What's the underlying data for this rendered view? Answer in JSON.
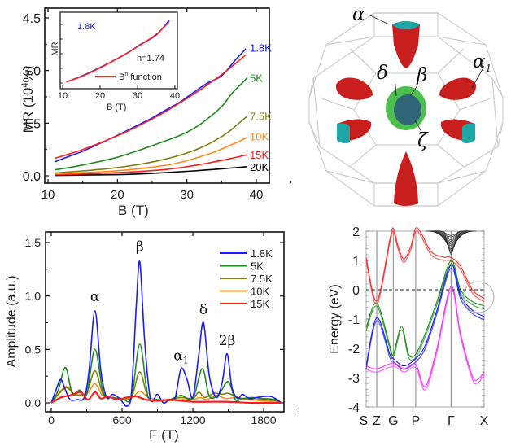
{
  "chart_data": [
    {
      "id": "mr",
      "type": "line",
      "title": "",
      "xlabel": "B (T)",
      "ylabel": "MR (10⁴%)",
      "ylabel_main": "MR (10",
      "ylabel_sup": "4",
      "ylabel_end": "%)",
      "xlim": [
        10,
        42
      ],
      "ylim": [
        -0.15,
        4.6
      ],
      "xticks": [
        10,
        20,
        30,
        40
      ],
      "yticks": [
        "0.0",
        "1.5",
        "3.0",
        "4.5"
      ],
      "ytick_values": [
        0,
        1.5,
        3.0,
        4.5
      ],
      "series": [
        {
          "name": "1.8K",
          "color": "#1a1aff",
          "x": [
            11,
            13,
            15,
            17,
            19,
            21,
            23,
            25,
            27,
            29,
            31,
            33,
            35,
            37,
            38.5
          ],
          "y": [
            0.4,
            0.55,
            0.7,
            0.88,
            1.06,
            1.25,
            1.45,
            1.65,
            1.88,
            2.1,
            2.38,
            2.65,
            2.85,
            3.3,
            3.62
          ]
        },
        {
          "name": "B^n fit",
          "color": "#ff2020",
          "x": [
            11,
            13,
            15,
            17,
            19,
            21,
            23,
            25,
            27,
            29,
            31,
            33,
            35,
            37,
            38.5
          ],
          "y": [
            0.5,
            0.62,
            0.75,
            0.9,
            1.06,
            1.23,
            1.42,
            1.62,
            1.84,
            2.08,
            2.33,
            2.6,
            2.88,
            3.2,
            3.45
          ]
        },
        {
          "name": "5K",
          "color": "#1f8a1f",
          "x": [
            11,
            14,
            17,
            20,
            23,
            26,
            29,
            31,
            33,
            35,
            36.5,
            38,
            38.7
          ],
          "y": [
            0.17,
            0.27,
            0.39,
            0.53,
            0.72,
            0.93,
            1.15,
            1.35,
            1.63,
            1.97,
            2.35,
            2.65,
            2.8
          ]
        },
        {
          "name": "7.5K",
          "color": "#7f7f0f",
          "x": [
            11,
            15,
            19,
            23,
            27,
            30,
            32,
            34,
            36,
            37.5,
            38.7
          ],
          "y": [
            0.08,
            0.14,
            0.21,
            0.32,
            0.48,
            0.65,
            0.8,
            1.0,
            1.25,
            1.5,
            1.7
          ]
        },
        {
          "name": "10K",
          "color": "#ff8c1a",
          "x": [
            11,
            15,
            19,
            23,
            27,
            30,
            32,
            34,
            36,
            37.5,
            38.7
          ],
          "y": [
            0.05,
            0.09,
            0.13,
            0.2,
            0.3,
            0.43,
            0.55,
            0.68,
            0.85,
            0.98,
            1.1
          ]
        },
        {
          "name": "15K",
          "color": "#ff1a1a",
          "x": [
            11,
            15,
            19,
            23,
            27,
            30,
            33,
            36,
            38.7
          ],
          "y": [
            0.03,
            0.05,
            0.08,
            0.12,
            0.18,
            0.26,
            0.36,
            0.48,
            0.6
          ]
        },
        {
          "name": "20K",
          "color": "#000000",
          "x": [
            11,
            15,
            19,
            23,
            27,
            31,
            35,
            38.7
          ],
          "y": [
            0.01,
            0.02,
            0.03,
            0.05,
            0.09,
            0.14,
            0.2,
            0.26
          ]
        }
      ],
      "series_labels": [
        "1.8K",
        "5K",
        "7.5K",
        "10K",
        "15K",
        "20K"
      ],
      "inset": {
        "ylabel": "MR",
        "xlabel": "B (T)",
        "xticks": [
          10,
          20,
          30,
          40
        ],
        "xlim": [
          10,
          41
        ],
        "temp_label": "1.8K",
        "fit_annotation": "n=1.74",
        "legend_label": "B",
        "legend_sup": "n",
        "legend_rest": " function",
        "series": [
          {
            "name": "data 1.8K",
            "color": "#1a1aff",
            "x": [
              11,
              15,
              19,
              23,
              27,
              31,
              35,
              38.5
            ],
            "y": [
              0.4,
              0.7,
              1.06,
              1.45,
              1.88,
              2.38,
              2.85,
              3.62
            ]
          },
          {
            "name": "B^n fit",
            "color": "#ff2020",
            "x": [
              11,
              15,
              19,
              23,
              27,
              31,
              35,
              38.5
            ],
            "y": [
              0.4,
              0.68,
              1.04,
              1.44,
              1.88,
              2.36,
              2.88,
              3.55
            ]
          }
        ]
      }
    },
    {
      "id": "fft",
      "type": "line",
      "xlabel": "F (T)",
      "ylabel": "Amplitude (a.u.)",
      "xlim": [
        -80,
        2050
      ],
      "ylim": [
        -0.08,
        1.6
      ],
      "xticks": [
        0,
        600,
        1200,
        1800
      ],
      "yticks": [
        "0.0",
        "0.5",
        "1.0",
        "1.5"
      ],
      "ytick_values": [
        0,
        0.5,
        1.0,
        1.5
      ],
      "legend_position": "top-right",
      "annotations": [
        {
          "text": "α",
          "x": 370,
          "y": 0.95
        },
        {
          "text": "β",
          "x": 750,
          "y": 1.42
        },
        {
          "text": "α",
          "sub": "1",
          "x": 1100,
          "y": 0.4
        },
        {
          "text": "δ",
          "x": 1290,
          "y": 0.83
        },
        {
          "text": "2β",
          "x": 1490,
          "y": 0.54
        }
      ],
      "series": [
        {
          "name": "1.8K",
          "color": "#1a1aff",
          "x": [
            0,
            40,
            80,
            120,
            160,
            220,
            280,
            320,
            370,
            420,
            470,
            520,
            580,
            640,
            680,
            720,
            750,
            790,
            840,
            900,
            950,
            1000,
            1050,
            1100,
            1150,
            1200,
            1250,
            1290,
            1340,
            1400,
            1450,
            1490,
            1530,
            1580,
            1620,
            1680,
            1740,
            1800,
            1860,
            1900,
            1950
          ],
          "y": [
            0,
            0.12,
            0.22,
            0.12,
            0.03,
            0.03,
            0.05,
            0.3,
            0.86,
            0.3,
            0.05,
            0.08,
            0.04,
            -0.03,
            0.1,
            0.9,
            1.32,
            0.6,
            0.04,
            0.08,
            0.0,
            0.03,
            0.05,
            0.32,
            0.22,
            0.05,
            0.45,
            0.75,
            0.25,
            0.05,
            0.2,
            0.46,
            0.15,
            0.04,
            0.08,
            0.04,
            0.05,
            0.06,
            0.06,
            0.04,
            0.0
          ]
        },
        {
          "name": "5K",
          "color": "#1f8a1f",
          "x": [
            0,
            60,
            120,
            180,
            240,
            300,
            370,
            440,
            520,
            600,
            680,
            750,
            820,
            900,
            1000,
            1100,
            1200,
            1280,
            1340,
            1420,
            1500,
            1560,
            1620,
            1700,
            1800,
            1900,
            1950
          ],
          "y": [
            0,
            0.12,
            0.33,
            0.08,
            0.12,
            0.08,
            0.5,
            0.1,
            0.05,
            0.04,
            0.05,
            0.55,
            0.06,
            0.03,
            0.03,
            0.07,
            0.04,
            0.32,
            0.06,
            0.08,
            0.2,
            0.03,
            0.04,
            0.05,
            0.04,
            0.03,
            0.0
          ]
        },
        {
          "name": "7.5K",
          "color": "#7f7f0f",
          "x": [
            0,
            120,
            200,
            300,
            370,
            440,
            520,
            600,
            680,
            750,
            820,
            900,
            1000,
            1100,
            1200,
            1250,
            1300,
            1380,
            1450,
            1500,
            1560,
            1620,
            1700,
            1800,
            1900,
            1950
          ],
          "y": [
            0,
            0.14,
            0.08,
            0.1,
            0.3,
            0.08,
            0.05,
            0.04,
            0.05,
            0.29,
            0.05,
            0.03,
            0.03,
            0.05,
            0.04,
            0.1,
            0.05,
            0.09,
            0.08,
            0.09,
            0.06,
            0.04,
            0.03,
            0.03,
            0.02,
            0.0
          ]
        },
        {
          "name": "10K",
          "color": "#ff8c1a",
          "x": [
            0,
            120,
            200,
            300,
            370,
            440,
            520,
            600,
            680,
            750,
            820,
            900,
            1000,
            1100,
            1200,
            1260,
            1320,
            1400,
            1480,
            1560,
            1650,
            1800,
            1950
          ],
          "y": [
            0,
            0.15,
            0.08,
            0.08,
            0.18,
            0.06,
            0.05,
            0.04,
            0.04,
            0.11,
            0.05,
            0.03,
            0.02,
            0.03,
            0.03,
            0.05,
            0.03,
            0.07,
            0.04,
            0.05,
            0.03,
            0.02,
            0.0
          ]
        },
        {
          "name": "15K",
          "color": "#ff1a1a",
          "x": [
            0,
            80,
            160,
            250,
            310,
            370,
            420,
            480,
            560,
            640,
            720,
            800,
            900,
            1000,
            1100,
            1200,
            1300,
            1500,
            1700,
            1950
          ],
          "y": [
            0,
            0.05,
            0.07,
            0.1,
            0.03,
            0.1,
            0.04,
            0.06,
            0.03,
            0.05,
            0.06,
            0.03,
            0.02,
            0.03,
            0.02,
            0.01,
            0.01,
            0.01,
            0.0,
            0.0
          ]
        }
      ]
    },
    {
      "id": "bands",
      "type": "line",
      "xlabel": "",
      "ylabel": "Energy (eV)",
      "ylim": [
        -4,
        2
      ],
      "yticks": [
        "-4",
        "-3",
        "-2",
        "-1",
        "0",
        "1",
        "2"
      ],
      "ytick_values": [
        -4,
        -3,
        -2,
        -1,
        0,
        1,
        2
      ],
      "kpoints": [
        "S",
        "Z",
        "G",
        "P",
        "Γ",
        "X"
      ],
      "kpoint_positions": [
        0,
        0.09,
        0.23,
        0.42,
        0.72,
        1.0
      ],
      "fermi_level": 0,
      "series": [
        {
          "name": "red band",
          "color": "#ff2a2a",
          "x": [
            0,
            0.09,
            0.2,
            0.23,
            0.27,
            0.32,
            0.38,
            0.42,
            0.47,
            0.55,
            0.65,
            0.72,
            0.8,
            0.9,
            1.0
          ],
          "y": [
            1.1,
            -0.38,
            1.7,
            2.1,
            1.5,
            1.05,
            1.5,
            2.1,
            1.9,
            1.3,
            1.12,
            1.1,
            0.8,
            0.0,
            -0.3
          ]
        },
        {
          "name": "green band",
          "color": "#1f8f1f",
          "x": [
            0,
            0.09,
            0.2,
            0.23,
            0.3,
            0.36,
            0.42,
            0.5,
            0.6,
            0.72,
            0.8,
            0.9,
            1.0
          ],
          "y": [
            -1.3,
            -0.45,
            -1.9,
            -2.2,
            -1.25,
            -2.2,
            -2.2,
            -1.5,
            -0.4,
            1.0,
            0.0,
            -0.4,
            -0.55
          ]
        },
        {
          "name": "blue band",
          "color": "#1a1aff",
          "x": [
            0,
            0.09,
            0.2,
            0.23,
            0.32,
            0.42,
            0.5,
            0.6,
            0.72,
            0.8,
            0.9,
            1.0
          ],
          "y": [
            -2.6,
            -0.95,
            -2.2,
            -2.35,
            -2.6,
            -2.35,
            -1.9,
            -0.7,
            0.85,
            -0.2,
            -0.7,
            -0.92
          ]
        },
        {
          "name": "magenta band",
          "color": "#ff2aff",
          "x": [
            0,
            0.09,
            0.23,
            0.32,
            0.42,
            0.5,
            0.6,
            0.72,
            0.8,
            0.9,
            0.95,
            1.0
          ],
          "y": [
            -2.6,
            -2.7,
            -2.5,
            -2.7,
            -2.55,
            -3.3,
            -2.0,
            0.12,
            -1.5,
            -2.95,
            -3.05,
            -2.8
          ]
        }
      ]
    }
  ],
  "fermi_surface": {
    "labels": [
      "α",
      "α",
      "1",
      "δ",
      "β",
      "ζ"
    ],
    "pocket_colors": {
      "hole": "#d42020",
      "cap": "#1fa6a6",
      "center_outer": "#4cbf4c",
      "center_inner": "#2f4f7f"
    }
  }
}
